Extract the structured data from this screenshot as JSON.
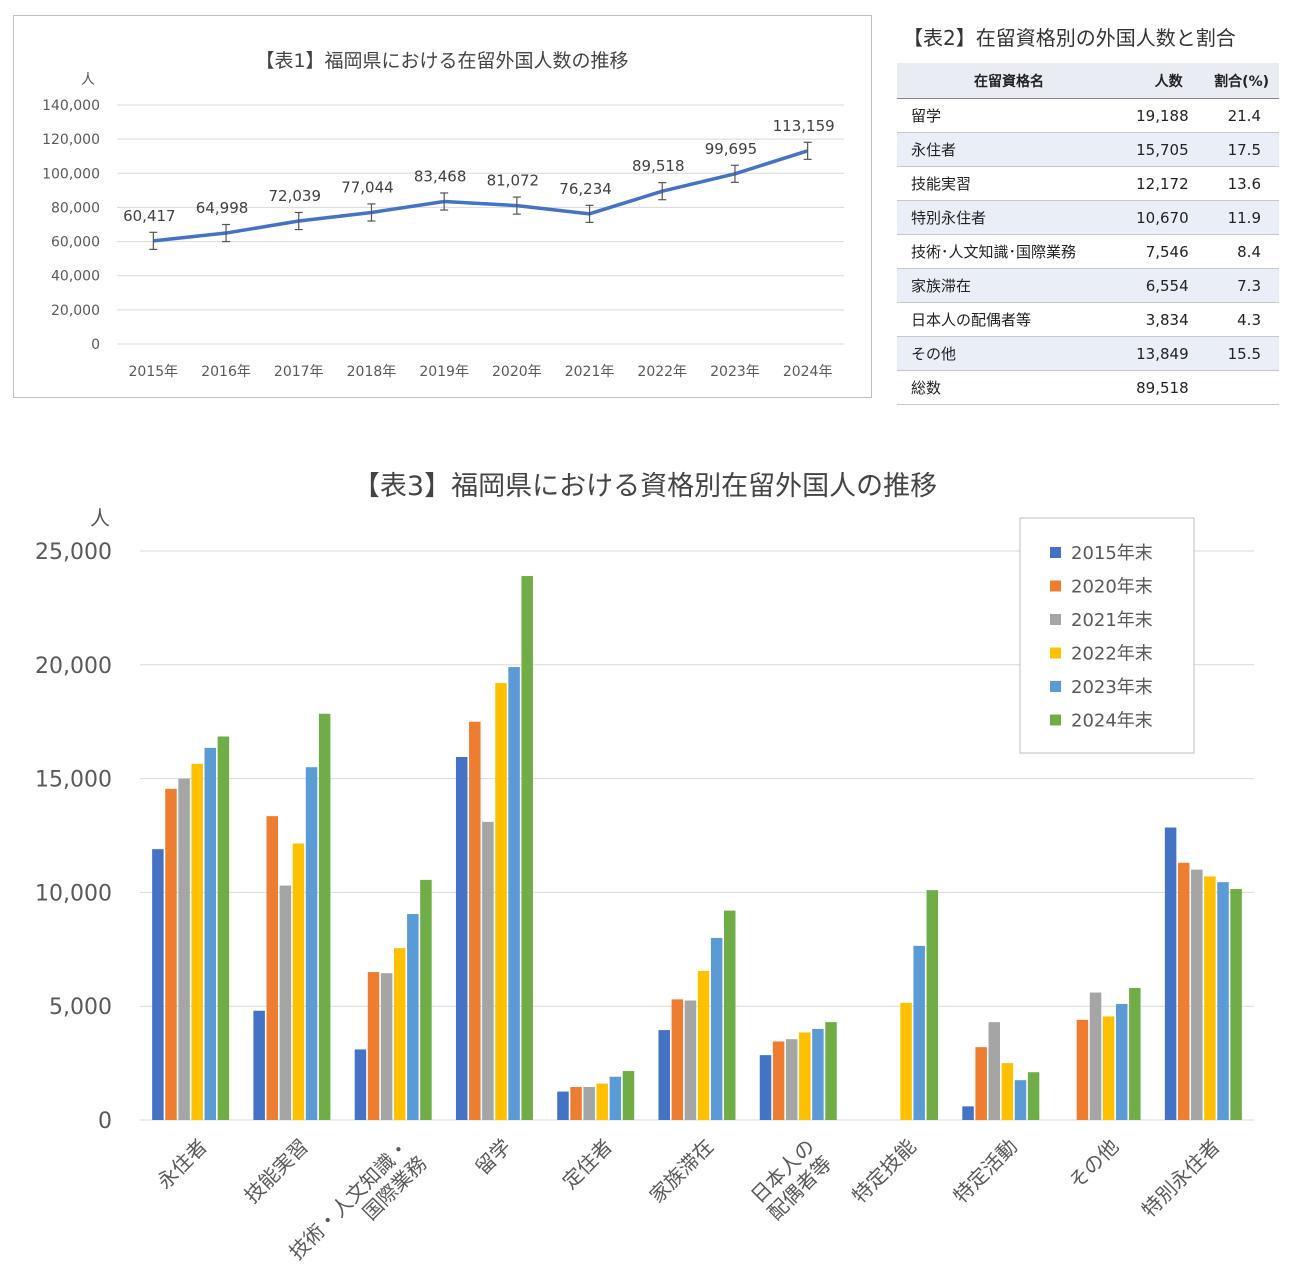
{
  "chart_data": [
    {
      "type": "line",
      "title": "【表1】福岡県における在留外国人数の推移",
      "ylabel": "人",
      "ylim": [
        0,
        140000
      ],
      "yticks": [
        "0",
        "20,000",
        "40,000",
        "60,000",
        "80,000",
        "100,000",
        "120,000",
        "140,000"
      ],
      "categories": [
        "2015年",
        "2016年",
        "2017年",
        "2018年",
        "2019年",
        "2020年",
        "2021年",
        "2022年",
        "2023年",
        "2024年"
      ],
      "values": [
        60417,
        64998,
        72039,
        77044,
        83468,
        81072,
        76234,
        89518,
        99695,
        113159
      ],
      "data_labels": [
        "60,417",
        "64,998",
        "72,039",
        "77,044",
        "83,468",
        "81,072",
        "76,234",
        "89,518",
        "99,695",
        "113,159"
      ],
      "error_bars": 5000,
      "color": "#4472c4",
      "grid": true
    },
    {
      "type": "table",
      "title": "【表2】在留資格別の外国人数と割合",
      "columns": [
        "在留資格名",
        "人数",
        "割合(%)"
      ],
      "rows": [
        [
          "留学",
          "19,188",
          "21.4"
        ],
        [
          "永住者",
          "15,705",
          "17.5"
        ],
        [
          "技能実習",
          "12,172",
          "13.6"
        ],
        [
          "特別永住者",
          "10,670",
          "11.9"
        ],
        [
          "技術･人文知識･国際業務",
          "7,546",
          "8.4"
        ],
        [
          "家族滞在",
          "6,554",
          "7.3"
        ],
        [
          "日本人の配偶者等",
          "3,834",
          "4.3"
        ],
        [
          "その他",
          "13,849",
          "15.5"
        ],
        [
          "総数",
          "89,518",
          ""
        ]
      ]
    },
    {
      "type": "bar",
      "title": "【表3】福岡県における資格別在留外国人の推移",
      "ylabel": "人",
      "ylim": [
        0,
        25000
      ],
      "yticks": [
        "0",
        "5,000",
        "10,000",
        "15,000",
        "20,000",
        "25,000"
      ],
      "grid": true,
      "legend": "top-right",
      "categories": [
        [
          "永住者"
        ],
        [
          "技能実習"
        ],
        [
          "技術・人文知識・",
          "国際業務"
        ],
        [
          "留学"
        ],
        [
          "定住者"
        ],
        [
          "家族滞在"
        ],
        [
          "日本人の",
          "配偶者等"
        ],
        [
          "特定技能"
        ],
        [
          "特定活動"
        ],
        [
          "その他"
        ],
        [
          "特別永住者"
        ]
      ],
      "series": [
        {
          "name": "2015年末",
          "color": "#4472c4",
          "values": [
            11900,
            4800,
            3100,
            15950,
            1250,
            3950,
            2850,
            0,
            600,
            0,
            12850
          ]
        },
        {
          "name": "2020年末",
          "color": "#ed7d31",
          "values": [
            14550,
            13350,
            6500,
            17500,
            1450,
            5300,
            3450,
            0,
            3200,
            4400,
            11300
          ]
        },
        {
          "name": "2021年末",
          "color": "#a5a5a5",
          "values": [
            15000,
            10300,
            6450,
            13100,
            1450,
            5250,
            3550,
            0,
            4300,
            5600,
            11000
          ]
        },
        {
          "name": "2022年末",
          "color": "#ffc000",
          "values": [
            15650,
            12150,
            7550,
            19200,
            1600,
            6550,
            3850,
            5150,
            2500,
            4550,
            10700
          ]
        },
        {
          "name": "2023年末",
          "color": "#5b9bd5",
          "values": [
            16350,
            15500,
            9050,
            19900,
            1900,
            8000,
            4000,
            7650,
            1750,
            5100,
            10450
          ]
        },
        {
          "name": "2024年末",
          "color": "#70ad47",
          "values": [
            16850,
            17850,
            10550,
            23900,
            2150,
            9200,
            4300,
            10100,
            2100,
            5800,
            10150
          ]
        }
      ]
    }
  ]
}
